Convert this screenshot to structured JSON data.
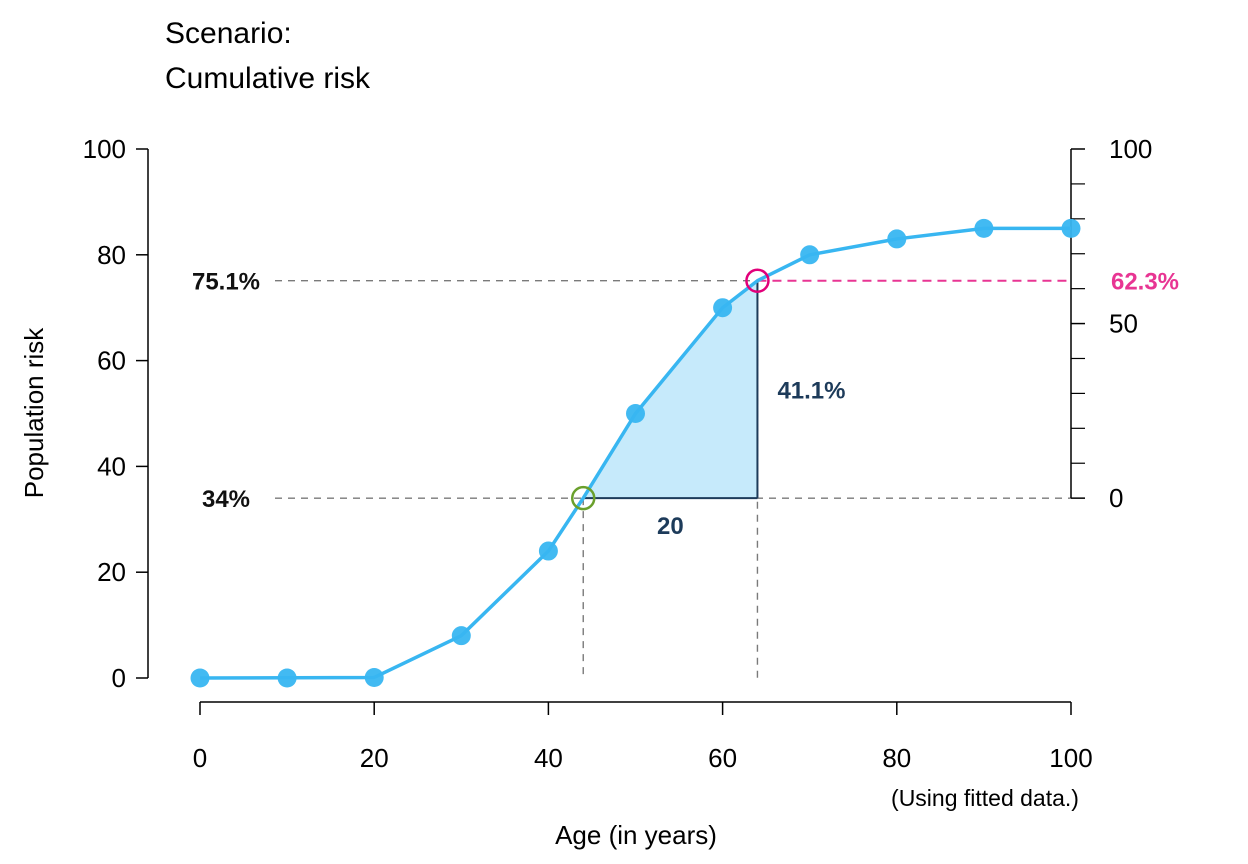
{
  "chart_data": {
    "type": "line",
    "title_lines": [
      "Scenario:",
      "Cumulative risk"
    ],
    "xlabel": "Age (in years)",
    "ylabel": "Population risk",
    "note": "(Using fitted data.)",
    "xlim": [
      0,
      100
    ],
    "ylim": [
      0,
      100
    ],
    "xticks": [
      0,
      20,
      40,
      60,
      80,
      100
    ],
    "yticks": [
      0,
      20,
      40,
      60,
      80,
      100
    ],
    "right_axis": {
      "ticks": [
        0,
        50,
        100
      ],
      "minor_ticks": [
        10,
        20,
        30,
        40,
        60,
        70,
        80,
        90
      ],
      "data_range": [
        34,
        100
      ]
    },
    "series": [
      {
        "color": "#38B6F1",
        "x": [
          0,
          10,
          20,
          30,
          40,
          50,
          60,
          70,
          80,
          90,
          100
        ],
        "y": [
          0,
          0,
          0.1,
          8,
          24,
          50,
          70,
          80,
          83,
          85,
          85
        ]
      }
    ],
    "curve_path": [
      [
        0,
        0
      ],
      [
        20,
        0.1
      ],
      [
        30,
        8
      ],
      [
        40,
        24
      ],
      [
        44,
        34
      ],
      [
        50,
        50
      ],
      [
        60,
        70
      ],
      [
        64,
        75.1
      ],
      [
        70,
        80
      ],
      [
        80,
        83
      ],
      [
        90,
        85
      ],
      [
        100,
        85
      ]
    ],
    "annotations": {
      "start": {
        "x": 44,
        "y": 34,
        "label": "34%",
        "color": "#6AA02C"
      },
      "end": {
        "x": 64,
        "y": 75.1,
        "label": "75.1%",
        "color": "#E2007A"
      },
      "delta_x_label": "20",
      "delta_y_label": "41.1%",
      "relative_label": "62.3%",
      "delta_color": "#1D3B5A",
      "relative_color": "#E83593",
      "fill_color": "#C6EAFB"
    }
  }
}
